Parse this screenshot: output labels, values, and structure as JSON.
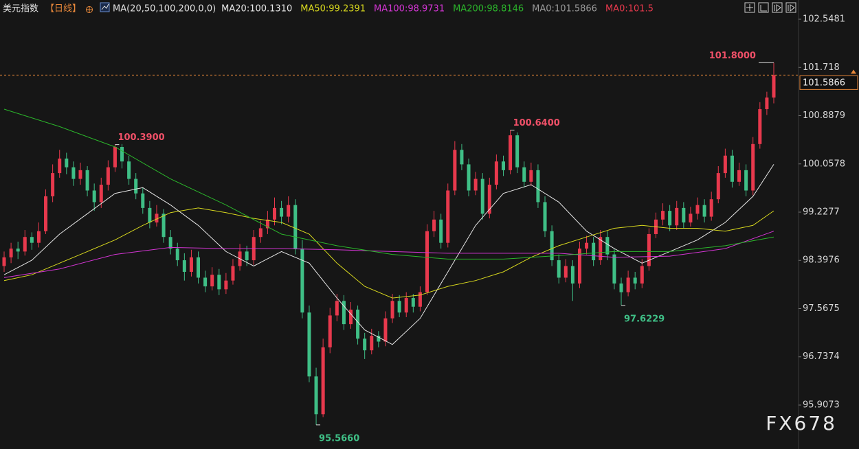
{
  "chart_data": {
    "type": "candlestick",
    "title": "美元指数",
    "period": "【日线】",
    "indicator": "MA(20,50,100,200,0,0)",
    "watermark": "FX678",
    "up_color": "#e8394d",
    "down_color": "#3fbf86",
    "ylim": [
      95.151,
      102.879
    ],
    "yticks": [
      102.5481,
      101.718,
      100.8879,
      100.0578,
      99.2277,
      98.3976,
      97.5675,
      96.7374,
      95.9073
    ],
    "open": [
      98.3,
      98.45,
      98.6,
      98.55,
      98.8,
      98.7,
      98.9,
      99.5,
      99.9,
      100.15,
      100.0,
      99.8,
      99.95,
      99.6,
      99.4,
      99.7,
      100.0,
      100.35,
      100.1,
      99.8,
      99.55,
      99.3,
      99.05,
      99.2,
      98.8,
      98.6,
      98.4,
      98.2,
      98.45,
      98.1,
      97.95,
      98.15,
      97.9,
      98.05,
      98.3,
      98.55,
      98.4,
      98.8,
      98.95,
      99.1,
      99.3,
      99.15,
      99.35,
      98.6,
      97.5,
      96.4,
      95.75,
      96.9,
      97.45,
      97.7,
      97.3,
      97.55,
      97.05,
      96.85,
      97.1,
      97.0,
      97.4,
      97.7,
      97.5,
      97.75,
      97.6,
      97.85,
      98.9,
      99.1,
      98.7,
      99.6,
      100.3,
      100.05,
      99.6,
      99.8,
      99.2,
      99.7,
      100.1,
      99.95,
      100.55,
      100.0,
      99.75,
      99.95,
      99.4,
      98.9,
      98.4,
      98.1,
      98.3,
      98.0,
      98.6,
      98.7,
      98.4,
      98.8,
      98.5,
      98.0,
      97.85,
      98.1,
      98.0,
      98.3,
      98.85,
      99.1,
      99.25,
      99.0,
      99.3,
      99.05,
      99.2,
      99.35,
      99.15,
      99.45,
      99.9,
      100.2,
      99.75,
      99.95,
      99.6,
      100.4,
      101.0,
      101.2
    ],
    "high": [
      98.55,
      98.7,
      98.72,
      98.92,
      98.88,
      99.05,
      99.62,
      100.05,
      100.3,
      100.25,
      100.1,
      100.08,
      100.02,
      99.72,
      99.82,
      100.12,
      100.39,
      100.4,
      100.2,
      99.9,
      99.65,
      99.42,
      99.35,
      99.28,
      98.92,
      98.7,
      98.52,
      98.58,
      98.55,
      98.22,
      98.28,
      98.25,
      98.18,
      98.42,
      98.68,
      98.65,
      98.92,
      99.08,
      99.25,
      99.48,
      99.42,
      99.5,
      99.45,
      98.75,
      97.62,
      96.55,
      97.05,
      97.58,
      97.82,
      97.8,
      97.68,
      97.62,
      97.15,
      97.22,
      97.18,
      97.52,
      97.82,
      97.8,
      97.85,
      97.82,
      97.95,
      99.02,
      99.25,
      99.2,
      99.72,
      100.45,
      100.4,
      100.15,
      99.92,
      99.9,
      99.82,
      100.22,
      100.2,
      100.64,
      100.6,
      100.1,
      100.08,
      100.05,
      99.5,
      99.0,
      98.5,
      98.42,
      98.4,
      98.72,
      98.82,
      98.8,
      98.92,
      98.9,
      98.6,
      98.1,
      98.22,
      98.2,
      98.42,
      98.95,
      99.22,
      99.38,
      99.35,
      99.42,
      99.4,
      99.32,
      99.48,
      99.45,
      99.58,
      100.02,
      100.32,
      100.3,
      100.08,
      100.05,
      100.52,
      101.12,
      101.3,
      101.8
    ],
    "low": [
      98.2,
      98.35,
      98.42,
      98.48,
      98.58,
      98.62,
      98.85,
      99.4,
      99.82,
      99.88,
      99.68,
      99.7,
      99.5,
      99.25,
      99.3,
      99.6,
      99.92,
      99.98,
      99.7,
      99.45,
      99.2,
      98.95,
      98.98,
      98.7,
      98.5,
      98.3,
      98.05,
      98.12,
      98.0,
      97.85,
      97.88,
      97.8,
      97.82,
      97.98,
      98.22,
      98.3,
      98.32,
      98.7,
      98.85,
      99.0,
      99.02,
      99.05,
      98.5,
      97.4,
      96.3,
      95.566,
      95.7,
      96.8,
      97.35,
      97.2,
      97.22,
      96.95,
      96.7,
      96.78,
      96.9,
      96.92,
      97.32,
      97.42,
      97.42,
      97.5,
      97.52,
      97.8,
      98.8,
      98.6,
      98.62,
      99.52,
      99.95,
      99.5,
      99.52,
      99.1,
      99.12,
      99.62,
      99.85,
      99.88,
      99.9,
      99.65,
      99.68,
      99.3,
      98.8,
      98.3,
      98.0,
      98.02,
      97.7,
      97.92,
      98.5,
      98.3,
      98.32,
      98.4,
      97.9,
      97.6229,
      97.78,
      97.9,
      97.92,
      98.22,
      98.78,
      99.0,
      98.9,
      98.92,
      98.95,
      98.98,
      99.1,
      99.05,
      99.08,
      99.38,
      99.82,
      99.65,
      99.68,
      99.5,
      99.52,
      100.32,
      100.9,
      101.1
    ],
    "close": [
      98.45,
      98.6,
      98.55,
      98.8,
      98.7,
      98.9,
      99.5,
      99.9,
      100.15,
      100.0,
      99.8,
      99.95,
      99.6,
      99.4,
      99.7,
      100.0,
      100.35,
      100.1,
      99.8,
      99.55,
      99.3,
      99.05,
      99.2,
      98.8,
      98.6,
      98.4,
      98.2,
      98.45,
      98.1,
      97.95,
      98.15,
      97.9,
      98.05,
      98.3,
      98.55,
      98.4,
      98.8,
      98.95,
      99.1,
      99.3,
      99.15,
      99.35,
      98.6,
      97.5,
      96.4,
      95.75,
      96.9,
      97.45,
      97.7,
      97.3,
      97.55,
      97.05,
      96.85,
      97.1,
      97.0,
      97.4,
      97.7,
      97.5,
      97.75,
      97.6,
      97.85,
      98.9,
      99.1,
      98.7,
      99.6,
      100.3,
      100.05,
      99.6,
      99.8,
      99.2,
      99.7,
      100.1,
      99.95,
      100.55,
      100.0,
      99.75,
      99.95,
      99.4,
      98.9,
      98.4,
      98.1,
      98.3,
      98.0,
      98.6,
      98.7,
      98.4,
      98.8,
      98.5,
      98.0,
      97.85,
      98.1,
      98.0,
      98.3,
      98.85,
      99.1,
      99.25,
      99.0,
      99.3,
      99.05,
      99.2,
      99.35,
      99.15,
      99.45,
      99.9,
      100.2,
      99.75,
      99.95,
      99.6,
      100.4,
      101.0,
      101.2,
      101.5866
    ],
    "series": [
      {
        "name": "MA20:100.1310",
        "color": "#e6e6e6",
        "x": [
          0,
          4,
          8,
          12,
          16,
          20,
          24,
          28,
          32,
          36,
          40,
          44,
          48,
          52,
          56,
          60,
          64,
          68,
          72,
          76,
          80,
          84,
          88,
          92,
          96,
          100,
          104,
          108,
          111
        ],
        "values": [
          98.15,
          98.4,
          98.85,
          99.2,
          99.55,
          99.65,
          99.35,
          99.0,
          98.55,
          98.3,
          98.55,
          98.35,
          97.75,
          97.2,
          96.95,
          97.4,
          98.2,
          99.0,
          99.55,
          99.7,
          99.4,
          98.9,
          98.6,
          98.35,
          98.55,
          98.75,
          99.05,
          99.5,
          100.05
        ]
      },
      {
        "name": "MA50:99.2391",
        "color": "#d8d81e",
        "x": [
          0,
          4,
          8,
          12,
          16,
          20,
          24,
          28,
          32,
          36,
          40,
          44,
          48,
          52,
          56,
          60,
          64,
          68,
          72,
          76,
          80,
          84,
          88,
          92,
          96,
          100,
          104,
          108,
          111
        ],
        "values": [
          98.05,
          98.15,
          98.35,
          98.55,
          98.75,
          99.0,
          99.22,
          99.3,
          99.22,
          99.12,
          99.05,
          98.85,
          98.35,
          97.95,
          97.75,
          97.8,
          97.95,
          98.05,
          98.2,
          98.45,
          98.65,
          98.8,
          98.95,
          99.0,
          98.95,
          98.95,
          98.9,
          99.0,
          99.25
        ]
      },
      {
        "name": "MA100:98.9731",
        "color": "#d435d4",
        "x": [
          0,
          8,
          16,
          24,
          32,
          40,
          48,
          56,
          64,
          72,
          80,
          88,
          96,
          104,
          111
        ],
        "values": [
          98.1,
          98.25,
          98.5,
          98.62,
          98.6,
          98.6,
          98.58,
          98.55,
          98.52,
          98.52,
          98.52,
          98.45,
          98.47,
          98.6,
          98.9
        ]
      },
      {
        "name": "MA200:98.8146",
        "color": "#2bb52b",
        "x": [
          0,
          8,
          16,
          24,
          32,
          40,
          48,
          56,
          64,
          72,
          80,
          88,
          96,
          104,
          111
        ],
        "values": [
          101.0,
          100.7,
          100.35,
          99.8,
          99.35,
          98.85,
          98.65,
          98.5,
          98.42,
          98.42,
          98.48,
          98.55,
          98.55,
          98.65,
          98.8
        ]
      }
    ],
    "extra_legend": [
      {
        "name": "MA0:101.5866",
        "color": "#9a9a9a"
      },
      {
        "name": "MA0:101.5",
        "color": "#e8394d"
      }
    ],
    "annotations": [
      {
        "kind": "high",
        "value": 100.39,
        "label": "100.3900"
      },
      {
        "kind": "high",
        "value": 100.64,
        "label": "100.6400"
      },
      {
        "kind": "high",
        "value": 101.8,
        "label": "101.8000"
      },
      {
        "kind": "low",
        "value": 95.566,
        "label": "95.5660"
      },
      {
        "kind": "low",
        "value": 97.6229,
        "label": "97.6229"
      }
    ],
    "current_price": {
      "value": 101.5866,
      "label": "101.5866"
    }
  }
}
